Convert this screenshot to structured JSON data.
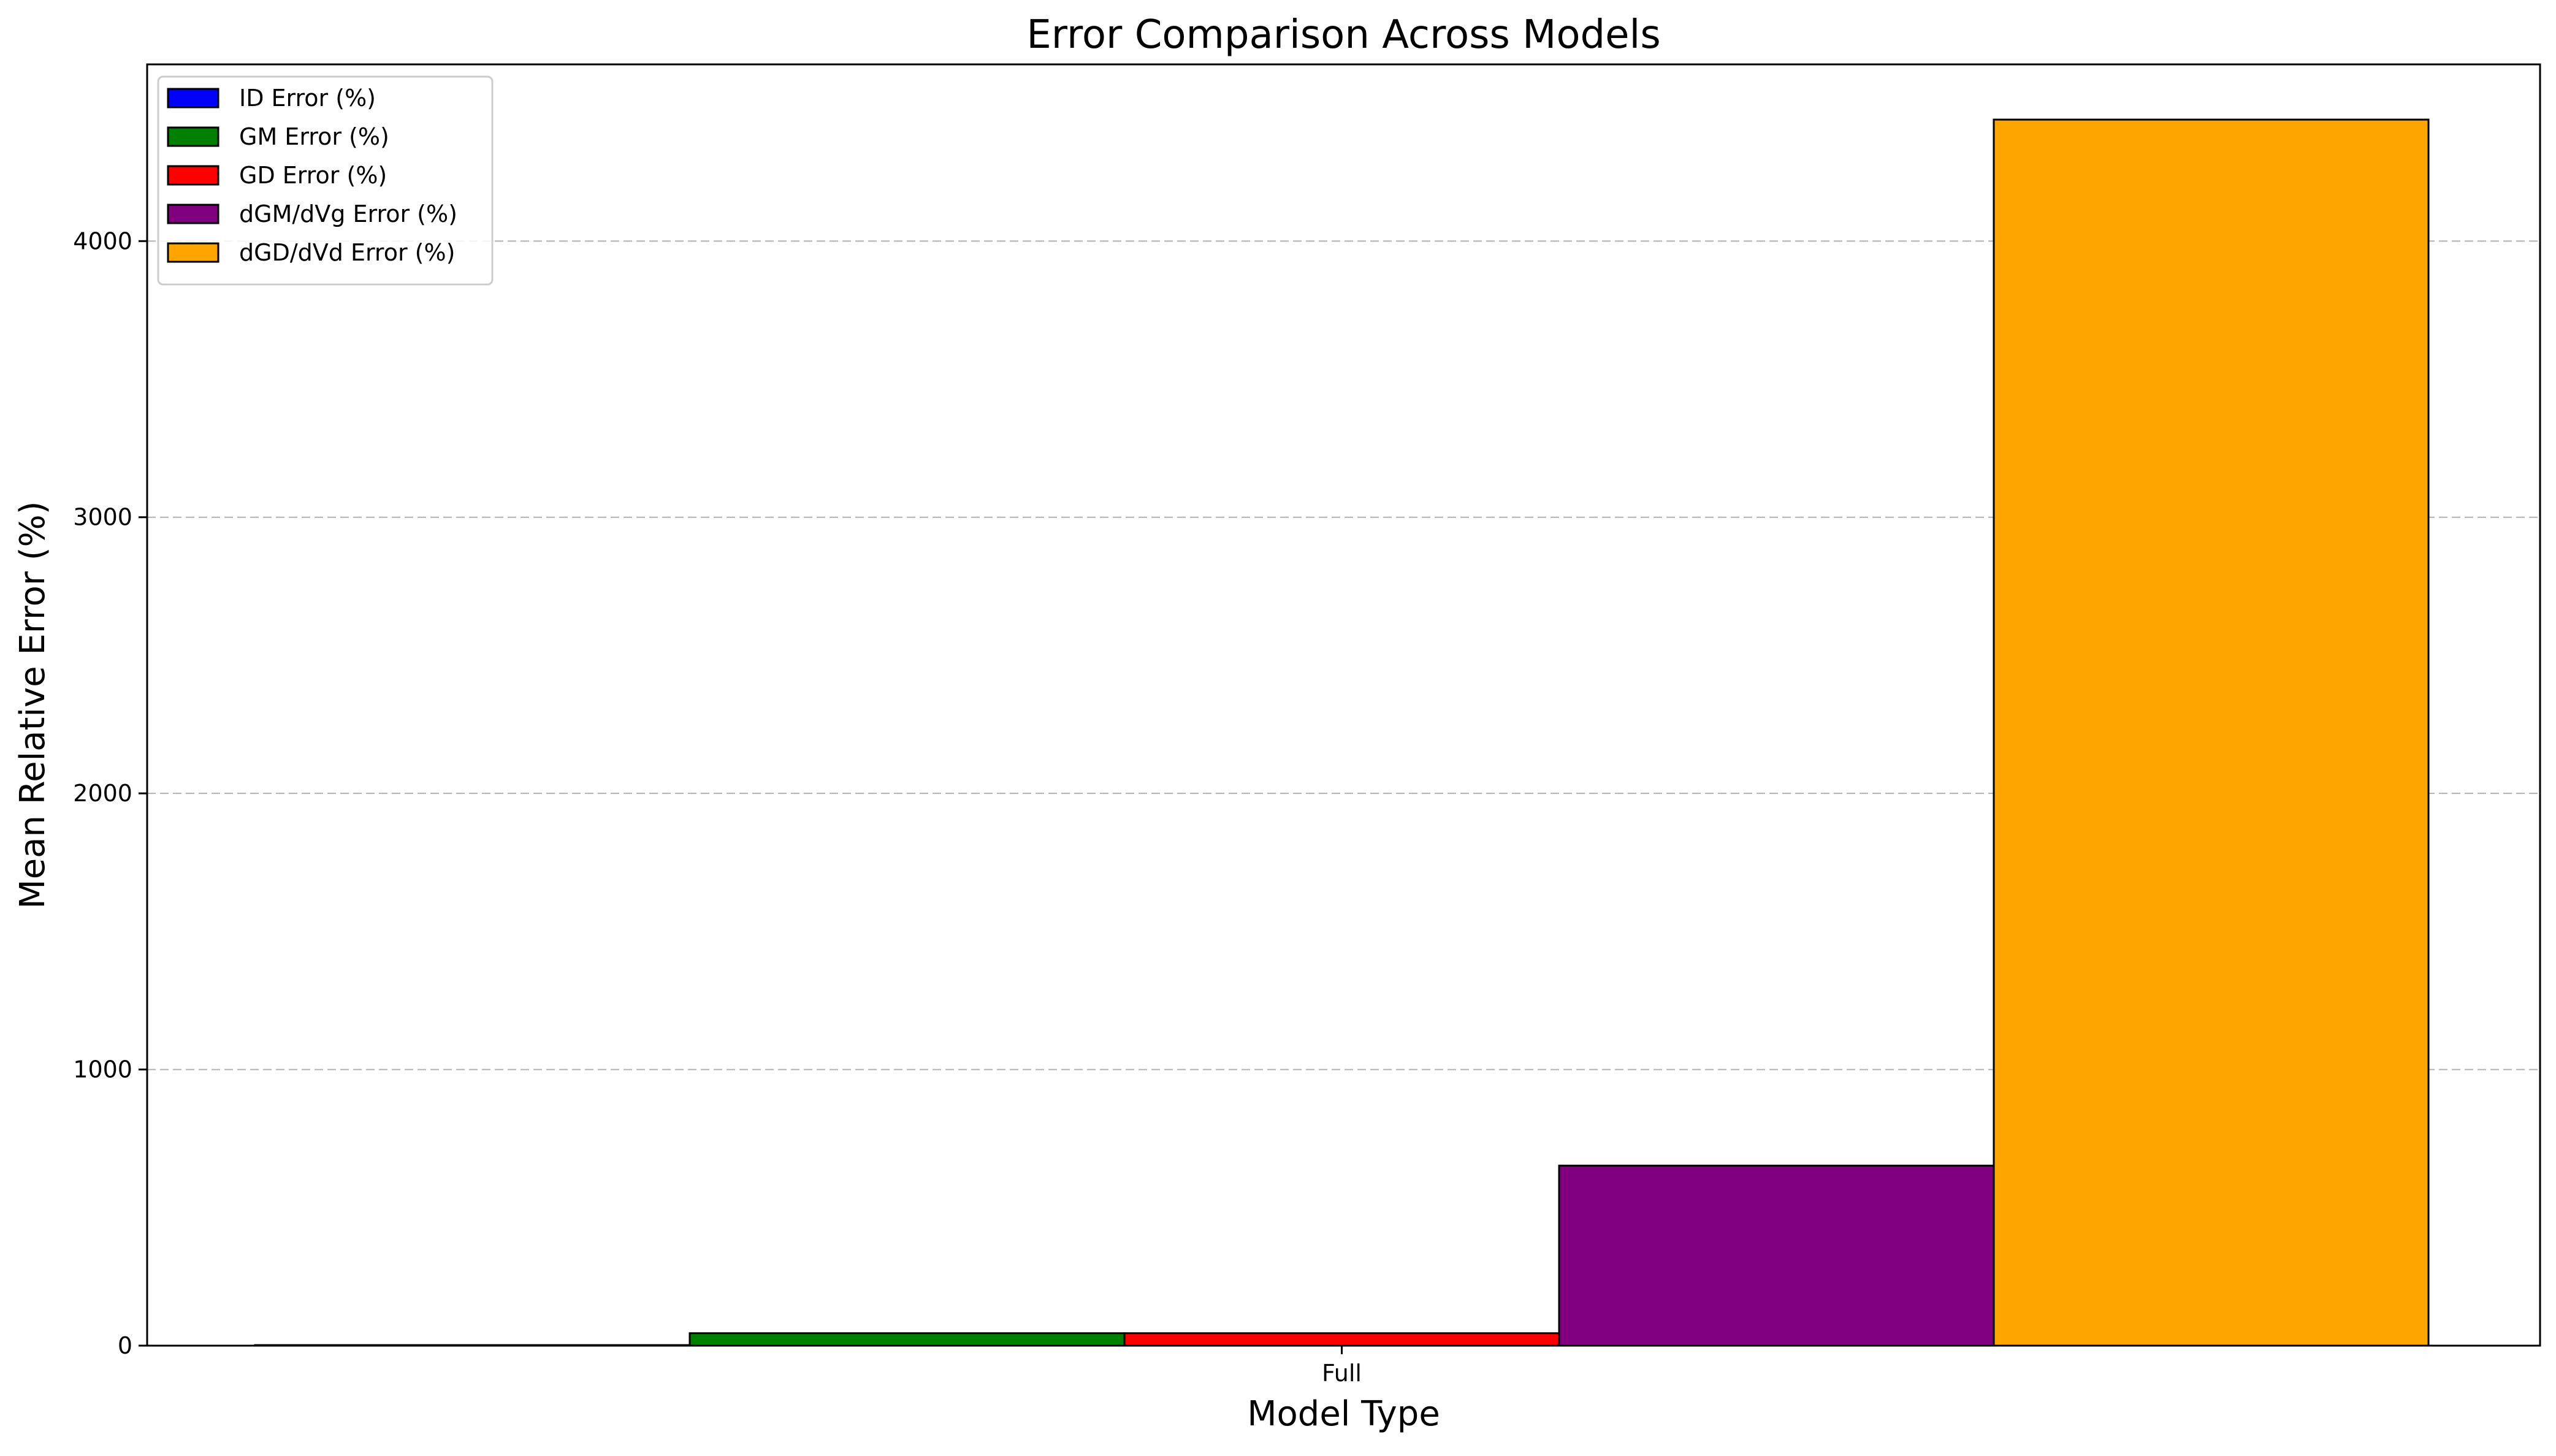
{
  "chart_data": {
    "type": "bar",
    "title": "Error Comparison Across Models",
    "xlabel": "Model Type",
    "ylabel": "Mean Relative Error (%)",
    "categories": [
      "Full"
    ],
    "ylim": [
      0,
      4640
    ],
    "yticks": [
      0,
      1000,
      2000,
      3000,
      4000
    ],
    "grid": "horizontal dashed",
    "legend_position": "top-left",
    "series": [
      {
        "name": "ID Error (%)",
        "color": "#0000ff",
        "values": [
          2
        ]
      },
      {
        "name": "GM Error (%)",
        "color": "#008000",
        "values": [
          45
        ]
      },
      {
        "name": "GD Error (%)",
        "color": "#ff0000",
        "values": [
          45
        ]
      },
      {
        "name": "dGM/dVg Error (%)",
        "color": "#800080",
        "values": [
          652
        ]
      },
      {
        "name": "dGD/dVd Error (%)",
        "color": "#ffa500",
        "values": [
          4440
        ]
      }
    ]
  }
}
